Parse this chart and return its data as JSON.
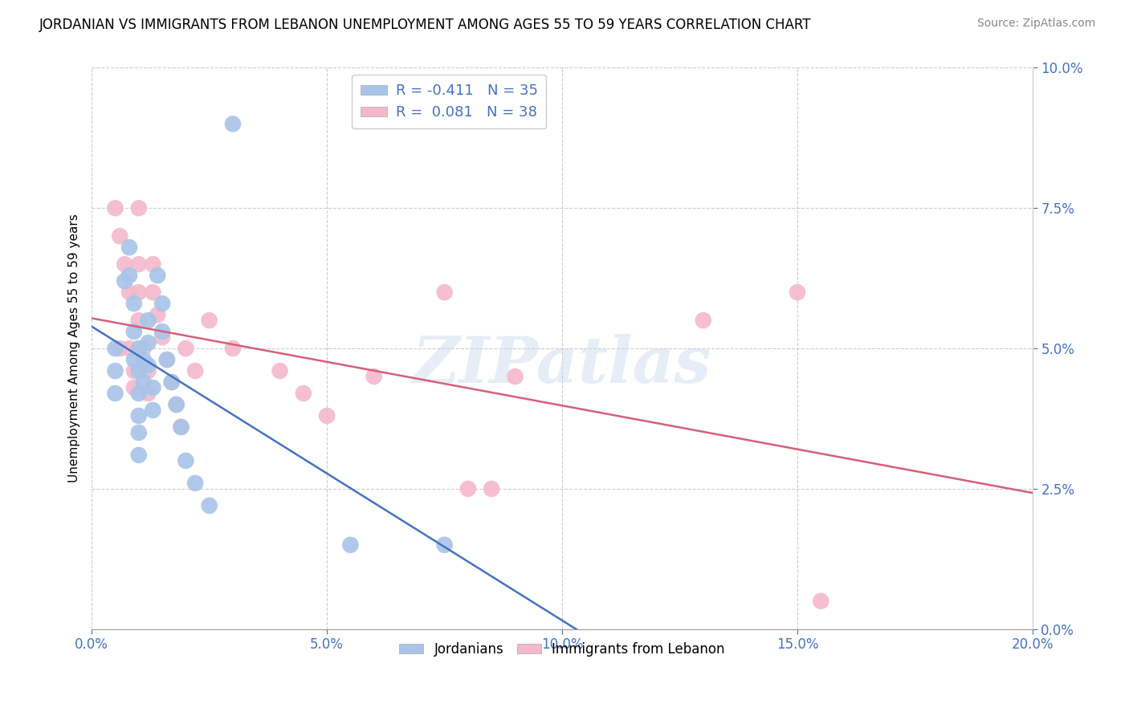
{
  "title": "JORDANIAN VS IMMIGRANTS FROM LEBANON UNEMPLOYMENT AMONG AGES 55 TO 59 YEARS CORRELATION CHART",
  "source": "Source: ZipAtlas.com",
  "ylabel": "Unemployment Among Ages 55 to 59 years",
  "xlim": [
    0.0,
    0.2
  ],
  "ylim": [
    0.0,
    0.1
  ],
  "xlabel_vals": [
    0.0,
    0.05,
    0.1,
    0.15,
    0.2
  ],
  "xlabel_labels": [
    "0.0%",
    "5.0%",
    "10.0%",
    "15.0%",
    "20.0%"
  ],
  "ylabel_vals": [
    0.0,
    0.025,
    0.05,
    0.075,
    0.1
  ],
  "ylabel_labels": [
    "0.0%",
    "2.5%",
    "5.0%",
    "7.5%",
    "10.0%"
  ],
  "jordanians_x": [
    0.005,
    0.005,
    0.005,
    0.007,
    0.008,
    0.008,
    0.009,
    0.009,
    0.009,
    0.01,
    0.01,
    0.01,
    0.01,
    0.01,
    0.01,
    0.011,
    0.011,
    0.012,
    0.012,
    0.012,
    0.013,
    0.013,
    0.014,
    0.015,
    0.015,
    0.016,
    0.017,
    0.018,
    0.019,
    0.02,
    0.022,
    0.025,
    0.03,
    0.055,
    0.075
  ],
  "jordanians_y": [
    0.05,
    0.046,
    0.042,
    0.062,
    0.068,
    0.063,
    0.058,
    0.053,
    0.048,
    0.05,
    0.046,
    0.042,
    0.038,
    0.035,
    0.031,
    0.048,
    0.044,
    0.055,
    0.051,
    0.047,
    0.043,
    0.039,
    0.063,
    0.058,
    0.053,
    0.048,
    0.044,
    0.04,
    0.036,
    0.03,
    0.026,
    0.022,
    0.09,
    0.015,
    0.015
  ],
  "lebanon_x": [
    0.005,
    0.006,
    0.006,
    0.007,
    0.008,
    0.008,
    0.009,
    0.009,
    0.01,
    0.01,
    0.01,
    0.011,
    0.012,
    0.012,
    0.013,
    0.013,
    0.014,
    0.015,
    0.016,
    0.017,
    0.018,
    0.019,
    0.02,
    0.022,
    0.025,
    0.03,
    0.04,
    0.045,
    0.05,
    0.06,
    0.075,
    0.08,
    0.085,
    0.09,
    0.13,
    0.15,
    0.155,
    0.01
  ],
  "lebanon_y": [
    0.075,
    0.07,
    0.05,
    0.065,
    0.06,
    0.05,
    0.046,
    0.043,
    0.065,
    0.06,
    0.055,
    0.05,
    0.046,
    0.042,
    0.065,
    0.06,
    0.056,
    0.052,
    0.048,
    0.044,
    0.04,
    0.036,
    0.05,
    0.046,
    0.055,
    0.05,
    0.046,
    0.042,
    0.038,
    0.045,
    0.06,
    0.025,
    0.025,
    0.045,
    0.055,
    0.06,
    0.005,
    0.075
  ],
  "jordan_R": -0.411,
  "jordan_N": 35,
  "lebanon_R": 0.081,
  "lebanon_N": 38,
  "jordan_line_color": "#4472c4",
  "lebanon_line_color": "#d4607a",
  "jordan_dot_color": "#a8c4e8",
  "lebanon_dot_color": "#f4b8cc",
  "watermark": "ZIPatlas",
  "background_color": "#ffffff",
  "grid_color": "#cccccc",
  "tick_color": "#4472c4",
  "title_fontsize": 12,
  "source_fontsize": 10
}
